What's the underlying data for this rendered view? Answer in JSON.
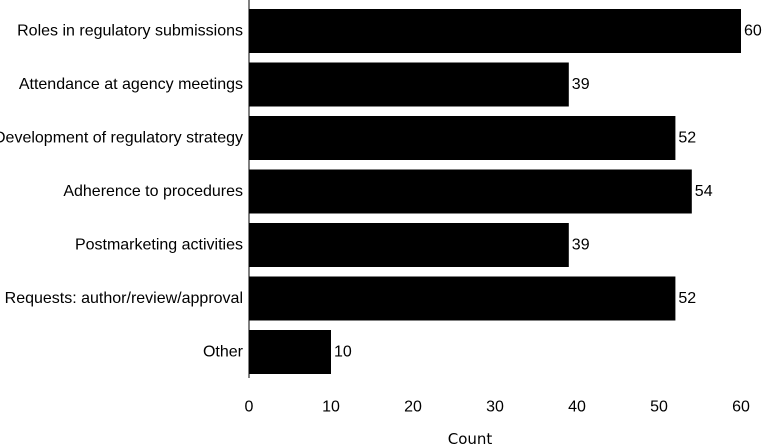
{
  "chart_data": {
    "type": "bar",
    "orientation": "horizontal",
    "categories": [
      "Roles in regulatory submissions",
      "Attendance at agency meetings",
      "Development of regulatory strategy",
      "Adherence to procedures",
      "Postmarketing activities",
      "Requests: author/review/approval",
      "Other"
    ],
    "values": [
      60,
      39,
      52,
      54,
      39,
      52,
      10
    ],
    "xlabel": "Count",
    "ylabel": "",
    "xlim": [
      0,
      60
    ],
    "xticks": [
      0,
      10,
      20,
      30,
      40,
      50,
      60
    ],
    "grid": false,
    "bar_color": "#000000"
  }
}
